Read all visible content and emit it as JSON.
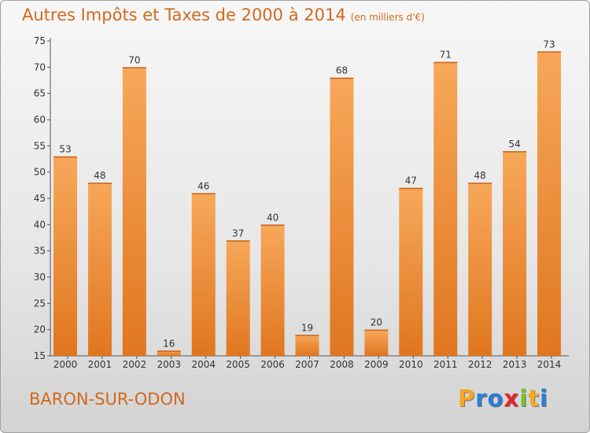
{
  "title": "Autres Impôts et Taxes de 2000 à 2014",
  "unit": "(en milliers d'€)",
  "commune": "BARON-SUR-ODON",
  "logo": {
    "letters": [
      "P",
      "r",
      "o",
      "x",
      "i",
      "t",
      "i"
    ],
    "colors": [
      "#f5a623",
      "#2a7fd4",
      "#2a7fd4",
      "#e4262f",
      "#7cbf2a",
      "#f5a623",
      "#2a7fd4"
    ]
  },
  "colors": {
    "bar_light": "#f7a85a",
    "bar_dark": "#e0761f",
    "text": "#d2691e"
  },
  "chart_data": {
    "type": "bar",
    "categories": [
      "2000",
      "2001",
      "2002",
      "2003",
      "2004",
      "2005",
      "2006",
      "2007",
      "2008",
      "2009",
      "2010",
      "2011",
      "2012",
      "2013",
      "2014"
    ],
    "values": [
      53,
      48,
      70,
      16,
      46,
      37,
      40,
      19,
      68,
      20,
      47,
      71,
      48,
      54,
      73
    ],
    "yticks": [
      "15",
      "20",
      "25",
      "30",
      "35",
      "40",
      "45",
      "50",
      "55",
      "60",
      "65",
      "70",
      "75"
    ],
    "ylim": [
      15,
      75
    ],
    "grid": false,
    "legend": false
  }
}
